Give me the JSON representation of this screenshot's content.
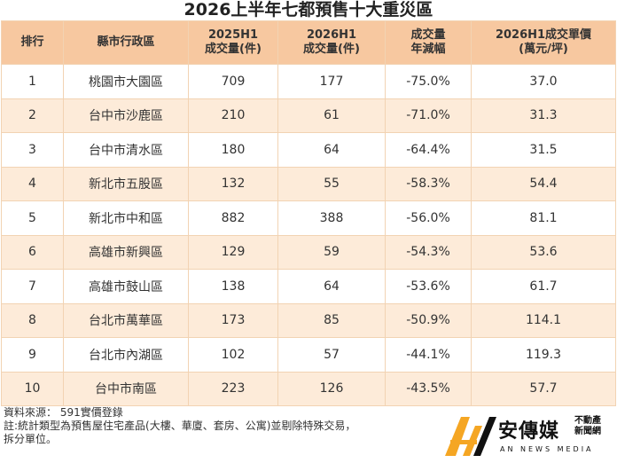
{
  "title": "2026上半年七都預售十大重災區",
  "table": {
    "headers": {
      "rank": "排行",
      "district": "縣市行政區",
      "vol2025": [
        "2025H1",
        "成交量(件)"
      ],
      "vol2026": [
        "2026H1",
        "成交量(件)"
      ],
      "yoy": [
        "成交量",
        "年減幅"
      ],
      "price": [
        "2026H1成交單價",
        "(萬元/坪)"
      ]
    },
    "rows": [
      {
        "rank": "1",
        "district": "桃園市大園區",
        "vol2025": "709",
        "vol2026": "177",
        "yoy": "-75.0%",
        "price": "37.0"
      },
      {
        "rank": "2",
        "district": "台中市沙鹿區",
        "vol2025": "210",
        "vol2026": "61",
        "yoy": "-71.0%",
        "price": "31.3"
      },
      {
        "rank": "3",
        "district": "台中市清水區",
        "vol2025": "180",
        "vol2026": "64",
        "yoy": "-64.4%",
        "price": "31.5"
      },
      {
        "rank": "4",
        "district": "新北市五股區",
        "vol2025": "132",
        "vol2026": "55",
        "yoy": "-58.3%",
        "price": "54.4"
      },
      {
        "rank": "5",
        "district": "新北市中和區",
        "vol2025": "882",
        "vol2026": "388",
        "yoy": "-56.0%",
        "price": "81.1"
      },
      {
        "rank": "6",
        "district": "高雄市新興區",
        "vol2025": "129",
        "vol2026": "59",
        "yoy": "-54.3%",
        "price": "53.6"
      },
      {
        "rank": "7",
        "district": "高雄市鼓山區",
        "vol2025": "138",
        "vol2026": "64",
        "yoy": "-53.6%",
        "price": "61.7"
      },
      {
        "rank": "8",
        "district": "台北市萬華區",
        "vol2025": "173",
        "vol2026": "85",
        "yoy": "-50.9%",
        "price": "114.1"
      },
      {
        "rank": "9",
        "district": "台北市內湖區",
        "vol2025": "102",
        "vol2026": "57",
        "yoy": "-44.1%",
        "price": "119.3"
      },
      {
        "rank": "10",
        "district": "台中市南區",
        "vol2025": "223",
        "vol2026": "126",
        "yoy": "-43.5%",
        "price": "57.7"
      }
    ]
  },
  "notes": {
    "source": "資料來源： 591實價登錄",
    "note_line1": "註:統計類型為預售屋住宅產品(大樓、華廈、套房、公寓)並剔除特殊交易，",
    "note_line2": "拆分單位。"
  },
  "logo": {
    "brand": "安傳媒",
    "sub_line1": "不動產",
    "sub_line2": "新聞網",
    "english": "AN NEWS MEDIA",
    "icon": "an-news-logo-mark",
    "colors": {
      "orange": "#f5a623",
      "dark": "#111111"
    }
  },
  "colors": {
    "header_bg": "#f7c8a0",
    "stripe_bg": "#fdebd9",
    "border": "#f2d3b3"
  }
}
